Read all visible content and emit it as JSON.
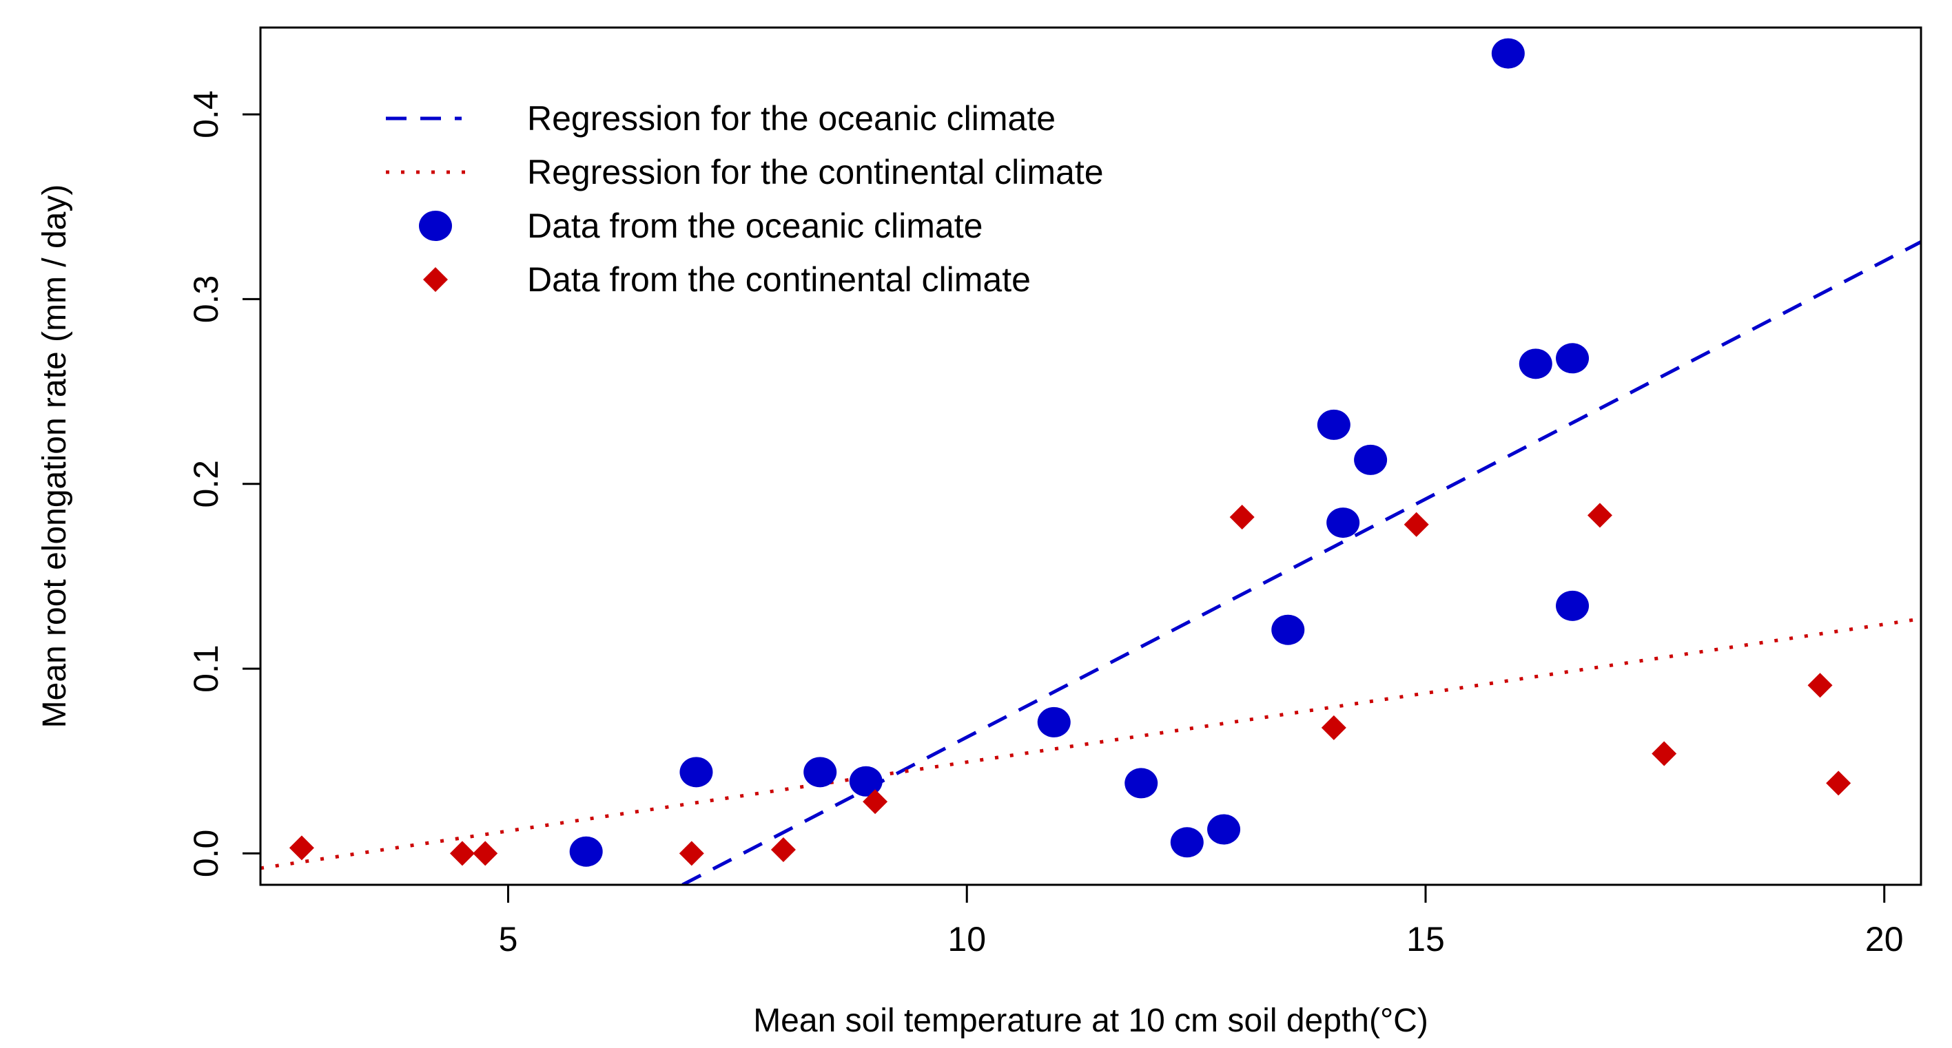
{
  "chart_data": {
    "type": "scatter",
    "title": "",
    "xlabel": "Mean soil temperature at 10 cm soil depth(°C)",
    "ylabel": "Mean root elongation rate (mm / day)",
    "xlim": [
      2.3,
      20.4
    ],
    "ylim": [
      -0.017,
      0.447
    ],
    "x_ticks": [
      5,
      10,
      15,
      20
    ],
    "x_tick_labels": [
      "5",
      "10",
      "15",
      "20"
    ],
    "y_ticks": [
      0.0,
      0.1,
      0.2,
      0.3,
      0.4
    ],
    "y_tick_labels": [
      "0.0",
      "0.1",
      "0.2",
      "0.3",
      "0.4"
    ],
    "grid": false,
    "legend_position": "top-left",
    "series": [
      {
        "name": "Data from the oceanic climate",
        "kind": "points",
        "marker": "circle",
        "color": "#0000cc",
        "points": [
          [
            5.85,
            0.001
          ],
          [
            7.05,
            0.044
          ],
          [
            8.4,
            0.044
          ],
          [
            8.9,
            0.039
          ],
          [
            10.95,
            0.071
          ],
          [
            11.9,
            0.038
          ],
          [
            12.4,
            0.006
          ],
          [
            12.8,
            0.013
          ],
          [
            13.5,
            0.121
          ],
          [
            14.0,
            0.232
          ],
          [
            14.1,
            0.179
          ],
          [
            14.4,
            0.213
          ],
          [
            15.9,
            0.433
          ],
          [
            16.2,
            0.265
          ],
          [
            16.6,
            0.268
          ],
          [
            16.6,
            0.134
          ]
        ]
      },
      {
        "name": "Data from the continental climate",
        "kind": "points",
        "marker": "diamond",
        "color": "#cc0000",
        "points": [
          [
            2.75,
            0.003
          ],
          [
            4.5,
            0.0
          ],
          [
            4.75,
            0.0
          ],
          [
            7.0,
            0.0
          ],
          [
            8.0,
            0.002
          ],
          [
            9.0,
            0.028
          ],
          [
            13.0,
            0.182
          ],
          [
            14.0,
            0.068
          ],
          [
            14.9,
            0.178
          ],
          [
            16.9,
            0.183
          ],
          [
            17.6,
            0.054
          ],
          [
            19.3,
            0.091
          ],
          [
            19.5,
            0.038
          ]
        ]
      },
      {
        "name": "Regression for the oceanic climate",
        "kind": "line",
        "dash": "dashed",
        "color": "#0000cc",
        "points": [
          [
            6.9,
            -0.017
          ],
          [
            20.4,
            0.331
          ]
        ]
      },
      {
        "name": "Regression for the continental climate",
        "kind": "line",
        "dash": "dotted",
        "color": "#cc0000",
        "points": [
          [
            2.3,
            -0.008
          ],
          [
            20.4,
            0.127
          ]
        ]
      }
    ],
    "legend": [
      {
        "label": "Regression for the oceanic climate",
        "symbol": "dashed-line",
        "color": "#0000cc"
      },
      {
        "label": "Regression for the continental climate",
        "symbol": "dotted-line",
        "color": "#cc0000"
      },
      {
        "label": "Data from the oceanic climate",
        "symbol": "circle",
        "color": "#0000cc"
      },
      {
        "label": "Data from the continental climate",
        "symbol": "diamond",
        "color": "#cc0000"
      }
    ]
  }
}
